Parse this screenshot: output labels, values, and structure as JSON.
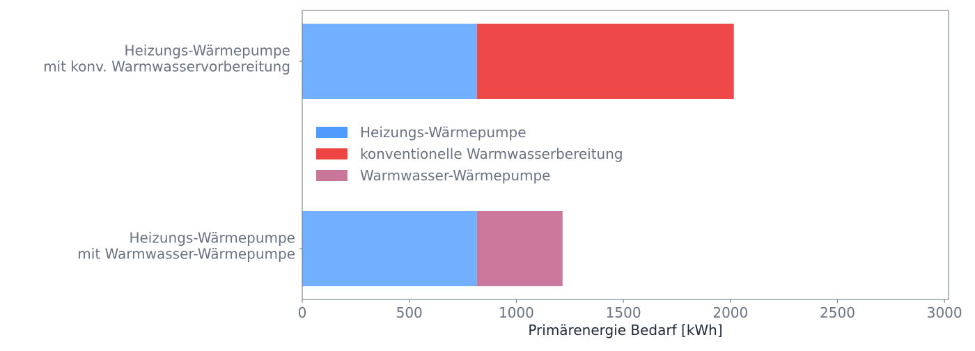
{
  "chart_data": {
    "type": "bar",
    "orientation": "horizontal",
    "stacked": true,
    "title": "",
    "xlabel": "Primärenergie Bedarf [kWh]",
    "ylabel": "",
    "xlim": [
      0,
      3020
    ],
    "xticks": [
      0,
      500,
      1000,
      1500,
      2000,
      2500,
      3000
    ],
    "categories": [
      [
        "Heizungs-Wärmepumpe",
        "mit konv. Warmwasservorbereitung"
      ],
      [
        "Heizungs-Wärmepumpe",
        "mit Warmwasser-Wärmepumpe"
      ]
    ],
    "series": [
      {
        "name": "Heizungs-Wärmepumpe",
        "color": "#4f9cff",
        "values": [
          816,
          816
        ]
      },
      {
        "name": "konventionelle Warmwasserbereitung",
        "color": "#ef4444",
        "values": [
          1200,
          0
        ]
      },
      {
        "name": "Warmwasser-Wärmepumpe",
        "color": "#c9769b",
        "values": [
          0,
          400
        ]
      }
    ],
    "grid": false,
    "legend_position": "center-left"
  }
}
